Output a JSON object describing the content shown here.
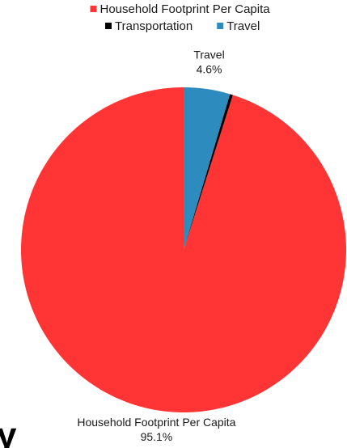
{
  "chart_data": {
    "type": "pie",
    "categories": [
      "Household Footprint Per Capita",
      "Transportation",
      "Travel"
    ],
    "values": [
      95.1,
      0.3,
      4.6
    ],
    "colors": [
      "#ff3535",
      "#000000",
      "#2e8bbd"
    ],
    "slice_labels": [
      {
        "name": "Household Footprint Per Capita",
        "pct": "95.1%"
      },
      {
        "name": "Travel",
        "pct": "4.6%"
      }
    ],
    "legend_position": "top",
    "legend": [
      "Household Footprint Per Capita",
      "Transportation",
      "Travel"
    ]
  },
  "corner_glyph": "y"
}
